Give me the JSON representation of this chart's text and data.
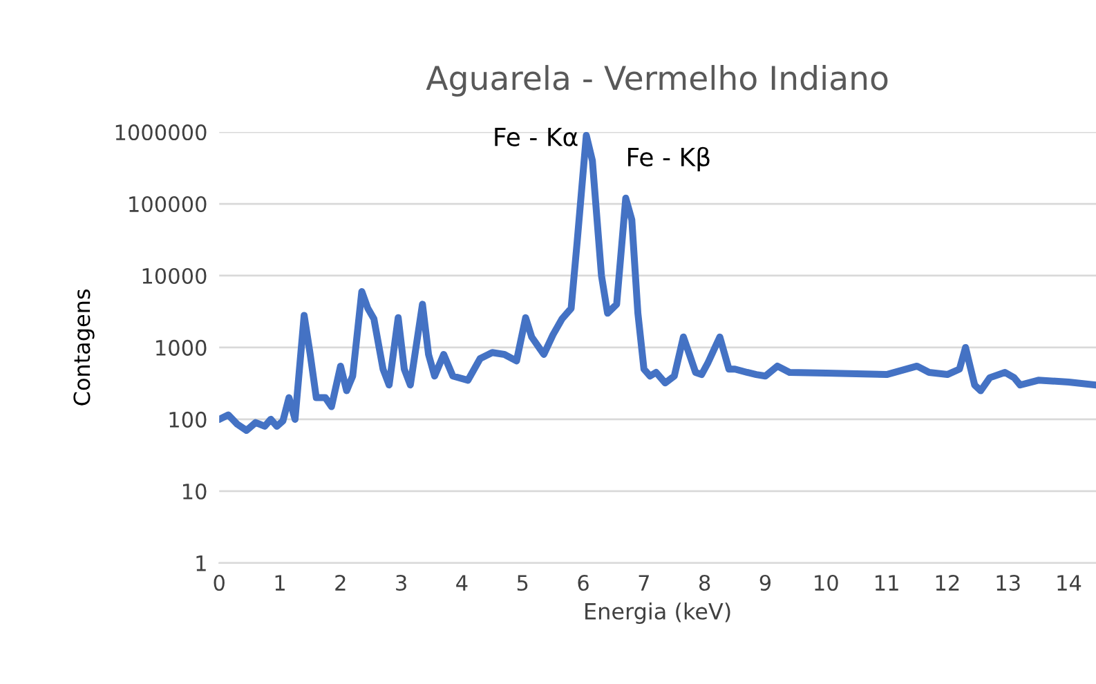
{
  "chart_data": {
    "type": "line",
    "title": "Aguarela - Vermelho Indiano",
    "xlabel": "Energia (keV)",
    "ylabel": "Contagens",
    "x": [
      0,
      0.15,
      0.3,
      0.45,
      0.6,
      0.75,
      0.85,
      0.95,
      1.05,
      1.15,
      1.25,
      1.4,
      1.5,
      1.6,
      1.75,
      1.85,
      2.0,
      2.1,
      2.2,
      2.35,
      2.45,
      2.55,
      2.7,
      2.8,
      2.95,
      3.05,
      3.15,
      3.35,
      3.45,
      3.55,
      3.7,
      3.85,
      4.1,
      4.3,
      4.5,
      4.7,
      4.9,
      5.05,
      5.15,
      5.35,
      5.5,
      5.65,
      5.8,
      5.9,
      6.05,
      6.15,
      6.3,
      6.4,
      6.55,
      6.7,
      6.8,
      6.9,
      7.0,
      7.1,
      7.2,
      7.35,
      7.5,
      7.65,
      7.75,
      7.85,
      7.95,
      8.05,
      8.25,
      8.4,
      8.5,
      8.7,
      8.85,
      9.0,
      9.2,
      9.4,
      10.0,
      10.5,
      11.0,
      11.5,
      11.7,
      12.0,
      12.2,
      12.3,
      12.45,
      12.55,
      12.7,
      12.95,
      13.1,
      13.2,
      13.5,
      14.0,
      14.45
    ],
    "series": [
      {
        "color": "#4472c4",
        "values": [
          100,
          115,
          85,
          70,
          90,
          80,
          100,
          80,
          95,
          200,
          100,
          2800,
          800,
          200,
          200,
          150,
          550,
          250,
          400,
          6000,
          3500,
          2500,
          500,
          300,
          2600,
          500,
          300,
          4000,
          800,
          400,
          800,
          400,
          350,
          700,
          850,
          800,
          650,
          2600,
          1400,
          800,
          1500,
          2500,
          3500,
          30000,
          900000,
          400000,
          10000,
          3000,
          4000,
          120000,
          60000,
          3000,
          500,
          400,
          450,
          320,
          400,
          1400,
          800,
          450,
          420,
          600,
          1400,
          500,
          500,
          450,
          420,
          400,
          550,
          450,
          440,
          430,
          420,
          550,
          450,
          420,
          500,
          1000,
          300,
          250,
          380,
          450,
          380,
          300,
          350,
          330,
          300
        ]
      }
    ],
    "log": "y",
    "xlim": [
      0,
      14.45
    ],
    "xticks": [
      0,
      1,
      2,
      3,
      4,
      5,
      6,
      7,
      8,
      9,
      10,
      11,
      12,
      13,
      14
    ],
    "ylim": [
      1,
      1000000
    ],
    "yticks": [
      1,
      10,
      100,
      1000,
      10000,
      100000,
      1000000
    ],
    "grid": "y",
    "legend": false,
    "marker": "none",
    "line_style": "solid",
    "annotations": [
      {
        "text": "Fe - Kα",
        "x": 6.05,
        "y": 900000
      },
      {
        "text": "Fe - Kβ",
        "x": 6.7,
        "y": 120000
      }
    ]
  }
}
